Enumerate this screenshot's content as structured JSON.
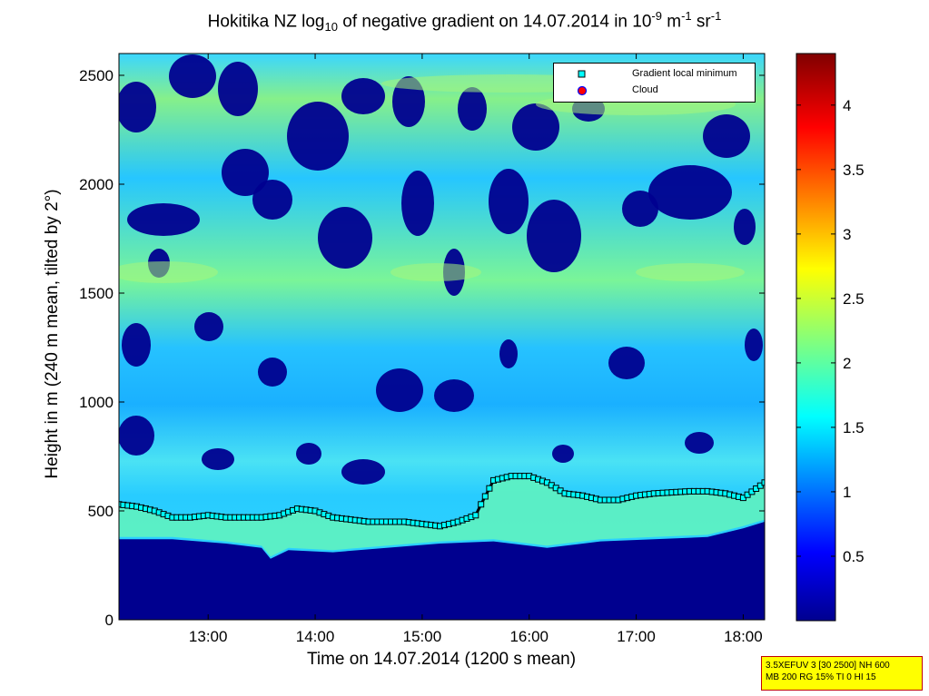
{
  "chart_data": {
    "type": "heatmap",
    "title_parts": {
      "a": "Hokitika NZ log",
      "b": "10",
      "c": " of negative gradient on 14.07.2014 in 10",
      "d": "-9",
      "e": " m",
      "f": "-1",
      "g": " sr",
      "h": "-1"
    },
    "xlabel": "Time on 14.07.2014 (1200 s mean)",
    "ylabel": "Height in m (240 m mean, tilted by 2°)",
    "xlim": [
      "12:10",
      "18:12"
    ],
    "ylim": [
      0,
      2600
    ],
    "x_ticks": [
      "13:00",
      "14:00",
      "15:00",
      "16:00",
      "17:00",
      "18:00"
    ],
    "y_ticks": [
      "0",
      "500",
      "1000",
      "1500",
      "2000",
      "2500"
    ],
    "colorbar": {
      "range": [
        0,
        4.4
      ],
      "ticks": [
        "0.5",
        "1",
        "1.5",
        "2",
        "2.5",
        "3",
        "3.5",
        "4"
      ],
      "colormap": "jet"
    },
    "legend": {
      "position": "top-right",
      "entries": [
        "Gradient local minimum",
        "Cloud"
      ]
    },
    "series": [
      {
        "name": "Gradient local minimum",
        "marker": "square",
        "color": "#00ffff",
        "x": [
          "12:10",
          "12:20",
          "12:30",
          "12:40",
          "12:50",
          "13:00",
          "13:10",
          "13:20",
          "13:30",
          "13:40",
          "13:50",
          "14:00",
          "14:10",
          "14:20",
          "14:30",
          "14:40",
          "14:50",
          "15:00",
          "15:10",
          "15:20",
          "15:30",
          "15:33",
          "15:40",
          "15:50",
          "16:00",
          "16:10",
          "16:20",
          "16:30",
          "16:40",
          "16:50",
          "17:00",
          "17:10",
          "17:20",
          "17:30",
          "17:40",
          "17:50",
          "18:00",
          "18:12"
        ],
        "y": [
          530,
          520,
          500,
          470,
          470,
          480,
          470,
          470,
          470,
          480,
          510,
          500,
          470,
          460,
          450,
          450,
          450,
          440,
          430,
          450,
          480,
          530,
          640,
          660,
          660,
          630,
          580,
          570,
          550,
          550,
          570,
          580,
          585,
          590,
          590,
          580,
          560,
          630
        ]
      }
    ],
    "cloud": [],
    "surface_layer_top": [
      [
        "12:10",
        370
      ],
      [
        "12:40",
        370
      ],
      [
        "13:10",
        350
      ],
      [
        "13:30",
        330
      ],
      [
        "13:35",
        280
      ],
      [
        "13:45",
        320
      ],
      [
        "14:10",
        310
      ],
      [
        "14:40",
        330
      ],
      [
        "15:10",
        350
      ],
      [
        "15:40",
        360
      ],
      [
        "16:10",
        330
      ],
      [
        "16:40",
        360
      ],
      [
        "17:10",
        370
      ],
      [
        "17:40",
        380
      ],
      [
        "18:00",
        420
      ],
      [
        "18:12",
        450
      ]
    ]
  },
  "info_box": {
    "line1": "3.5XEFUV 3 [30 2500] NH 600",
    "line2": "MB 200 RG 15% TI 0 HI 15"
  }
}
